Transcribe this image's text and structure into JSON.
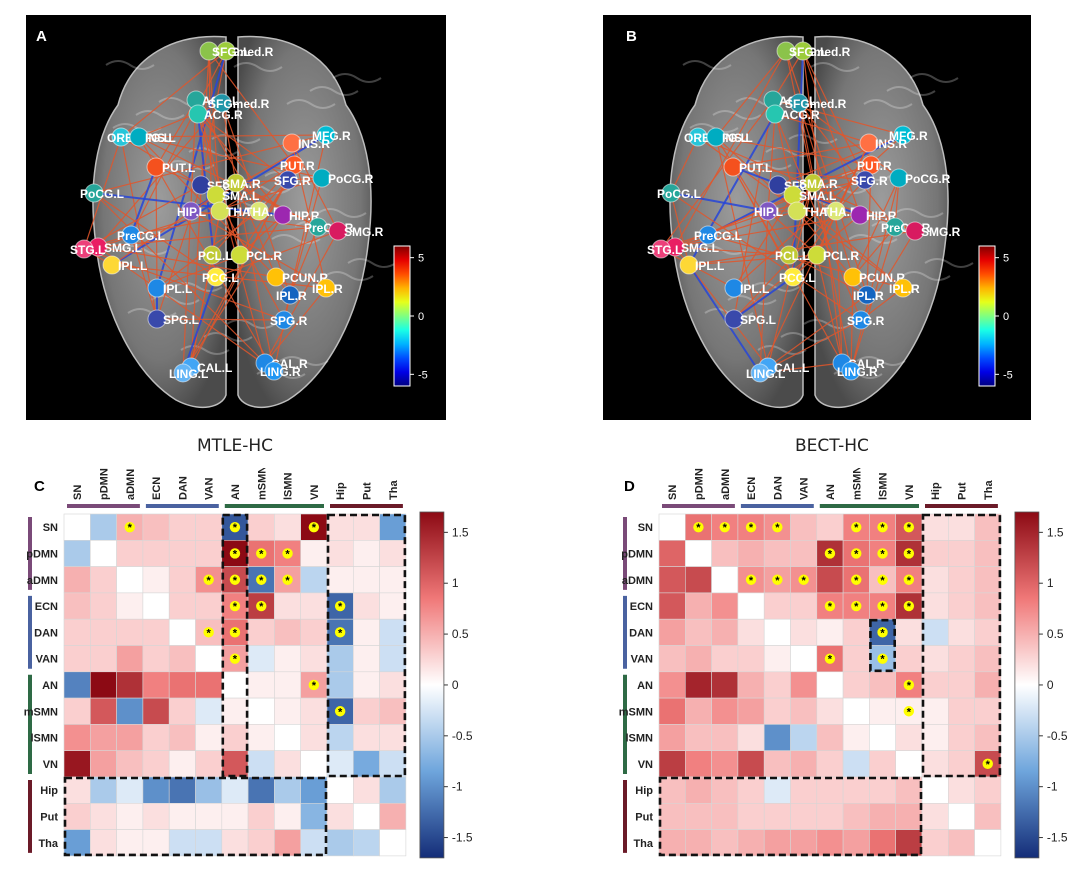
{
  "panels": {
    "A": {
      "label": "A"
    },
    "B": {
      "label": "B"
    },
    "C": {
      "label": "C",
      "title": "MTLE-HC"
    },
    "D": {
      "label": "D",
      "title": "BECT-HC"
    }
  },
  "brain_A_nodes": [
    {
      "name": "SFG.L",
      "color": "#8bc34a"
    },
    {
      "name": "SFGmed.R",
      "color": "#9ccc3a"
    },
    {
      "name": "ACG.L",
      "color": "#26a69a"
    },
    {
      "name": "SFGmed.R",
      "color": "#2196a8"
    },
    {
      "name": "ACG.R",
      "color": "#26c6b0"
    },
    {
      "name": "ORBMFG.L",
      "color": "#26c6da"
    },
    {
      "name": "INS.L",
      "color": "#00acc1"
    },
    {
      "name": "MFG.R",
      "color": "#00bcd4"
    },
    {
      "name": "INS.R",
      "color": "#ff7043"
    },
    {
      "name": "PUT.R",
      "color": "#ff5722"
    },
    {
      "name": "PUT.L",
      "color": "#f4511e"
    },
    {
      "name": "SFG.R",
      "color": "#3949ab"
    },
    {
      "name": "PoCG.R",
      "color": "#00acc1"
    },
    {
      "name": "PoCG.L",
      "color": "#26a69a"
    },
    {
      "name": "SFG.L",
      "color": "#303f9f"
    },
    {
      "name": "SMA.R",
      "color": "#c0ca33"
    },
    {
      "name": "SMA.L",
      "color": "#cddc39"
    },
    {
      "name": "HIP.L",
      "color": "#7e57c2"
    },
    {
      "name": "THA.L",
      "color": "#d4e157"
    },
    {
      "name": "THA.R",
      "color": "#dce775"
    },
    {
      "name": "HIP.R",
      "color": "#9c27b0"
    },
    {
      "name": "PreCG.R",
      "color": "#26a69a"
    },
    {
      "name": "SMG.R",
      "color": "#d81b60"
    },
    {
      "name": "PreCG.L",
      "color": "#1e88e5"
    },
    {
      "name": "SMG.L",
      "color": "#e91e63"
    },
    {
      "name": "STG.L",
      "color": "#ec407a"
    },
    {
      "name": "IPL.L",
      "color": "#fdd835"
    },
    {
      "name": "PCL.L",
      "color": "#c0ca33"
    },
    {
      "name": "PCL.R",
      "color": "#cddc39"
    },
    {
      "name": "PCG.L",
      "color": "#ffeb3b"
    },
    {
      "name": "PCUN.R",
      "color": "#ffc107"
    },
    {
      "name": "IPL.R",
      "color": "#ffc107"
    },
    {
      "name": "IPL.L",
      "color": "#1e88e5"
    },
    {
      "name": "IPL.R",
      "color": "#1565c0"
    },
    {
      "name": "SPG.L",
      "color": "#3949ab"
    },
    {
      "name": "SPG.R",
      "color": "#1e88e5"
    },
    {
      "name": "CAL.L",
      "color": "#42a5f5"
    },
    {
      "name": "LING.L",
      "color": "#64b5f6"
    },
    {
      "name": "CAL.R",
      "color": "#1e88e5"
    },
    {
      "name": "LING.R",
      "color": "#2196f3"
    }
  ],
  "brain_B_nodes": [
    {
      "name": "SFG.L",
      "color": "#8bc34a"
    },
    {
      "name": "SFGmed.R",
      "color": "#9ccc3a"
    },
    {
      "name": "ACG.L",
      "color": "#26a69a"
    },
    {
      "name": "SFGmed.R",
      "color": "#2196a8"
    },
    {
      "name": "ACG.R",
      "color": "#26c6b0"
    },
    {
      "name": "ORBMFG.L",
      "color": "#26c6da"
    },
    {
      "name": "INS.L",
      "color": "#00acc1"
    },
    {
      "name": "MFG.R",
      "color": "#00bcd4"
    },
    {
      "name": "INS.R",
      "color": "#ff7043"
    },
    {
      "name": "PUT.R",
      "color": "#ff5722"
    },
    {
      "name": "PUT.L",
      "color": "#f4511e"
    },
    {
      "name": "SFG.R",
      "color": "#3949ab"
    },
    {
      "name": "PoCG.R",
      "color": "#00acc1"
    },
    {
      "name": "PoCG.L",
      "color": "#26a69a"
    },
    {
      "name": "SFG.L",
      "color": "#303f9f"
    },
    {
      "name": "SMA.R",
      "color": "#c0ca33"
    },
    {
      "name": "SMA.L",
      "color": "#cddc39"
    },
    {
      "name": "HIP.L",
      "color": "#7e57c2"
    },
    {
      "name": "THA.L",
      "color": "#d4e157"
    },
    {
      "name": "THA.R",
      "color": "#dce775"
    },
    {
      "name": "HIP.R",
      "color": "#9c27b0"
    },
    {
      "name": "PreCG.R",
      "color": "#26a69a"
    },
    {
      "name": "SMG.R",
      "color": "#d81b60"
    },
    {
      "name": "PreCG.L",
      "color": "#1e88e5"
    },
    {
      "name": "SMG.L",
      "color": "#e91e63"
    },
    {
      "name": "STG.L",
      "color": "#ec407a"
    },
    {
      "name": "IPL.L",
      "color": "#fdd835"
    },
    {
      "name": "PCL.L",
      "color": "#c0ca33"
    },
    {
      "name": "PCL.R",
      "color": "#cddc39"
    },
    {
      "name": "PCG.L",
      "color": "#ffeb3b"
    },
    {
      "name": "PCUN.R",
      "color": "#ffc107"
    },
    {
      "name": "IPL.R",
      "color": "#ffc107"
    },
    {
      "name": "IPL.L",
      "color": "#1e88e5"
    },
    {
      "name": "IPL.R",
      "color": "#1565c0"
    },
    {
      "name": "SPG.L",
      "color": "#3949ab"
    },
    {
      "name": "SPG.R",
      "color": "#1e88e5"
    },
    {
      "name": "CAL.L",
      "color": "#42a5f5"
    },
    {
      "name": "LING.L",
      "color": "#64b5f6"
    },
    {
      "name": "CAL.R",
      "color": "#1e88e5"
    },
    {
      "name": "LING.R",
      "color": "#2196f3"
    }
  ],
  "brain_colorbar": {
    "ticks": [
      "5",
      "0",
      "-5"
    ],
    "min": -6,
    "max": 6
  },
  "matrix_colorbar": {
    "ticks": [
      "1.5",
      "1",
      "0.5",
      "0",
      "-0.5",
      "-1",
      "-1.5"
    ],
    "min": -1.7,
    "max": 1.7
  },
  "chart_data": [
    {
      "type": "heatmap",
      "title": "MTLE-HC",
      "row_labels": [
        "SN",
        "pDMN",
        "aDMN",
        "ECN",
        "DAN",
        "VAN",
        "AN",
        "mSMN",
        "lSMN",
        "VN",
        "Hip",
        "Put",
        "Tha"
      ],
      "col_labels": [
        "SN",
        "pDMN",
        "aDMN",
        "ECN",
        "DAN",
        "VAN",
        "AN",
        "mSMN",
        "lSMN",
        "VN",
        "Hip",
        "Put",
        "Tha"
      ],
      "group_colors": [
        "#7a4a78",
        "#7a4a78",
        "#7a4a78",
        "#4a62a0",
        "#4a62a0",
        "#4a62a0",
        "#2e6a45",
        "#2e6a45",
        "#2e6a45",
        "#2e6a45",
        "#6b1a28",
        "#6b1a28",
        "#6b1a28"
      ],
      "values": [
        [
          0,
          -0.5,
          0.5,
          0.4,
          0.3,
          0.3,
          -1.4,
          0.3,
          0.2,
          1.7,
          0.2,
          0.2,
          -0.9
        ],
        [
          -0.5,
          0,
          0.3,
          0.3,
          0.3,
          0.3,
          1.7,
          0.9,
          0.8,
          0.1,
          0.2,
          0.1,
          0.2
        ],
        [
          0.5,
          0.3,
          0,
          0.1,
          0.3,
          0.7,
          1.2,
          -1.2,
          0.6,
          -0.4,
          0.1,
          0.1,
          0.1
        ],
        [
          0.4,
          0.3,
          0.1,
          0,
          0.3,
          0.3,
          0.8,
          1.3,
          0.2,
          0.2,
          -1.3,
          0.2,
          0.1
        ],
        [
          0.3,
          0.3,
          0.3,
          0.3,
          0,
          0.4,
          0.9,
          0.3,
          0.4,
          0.3,
          -1.2,
          0.1,
          -0.3
        ],
        [
          0.3,
          0.3,
          0.6,
          0.3,
          0.4,
          0,
          0.6,
          -0.2,
          0.1,
          0.2,
          -0.5,
          0.1,
          -0.3
        ],
        [
          -1.1,
          1.7,
          1.4,
          0.8,
          0.9,
          0.9,
          0,
          0.1,
          0.1,
          0.6,
          -0.5,
          0.1,
          0.2
        ],
        [
          0.3,
          1.1,
          -1.0,
          1.2,
          0.3,
          -0.2,
          0.1,
          0,
          0.1,
          0.2,
          -1.3,
          0.3,
          0.4
        ],
        [
          0.7,
          0.6,
          0.6,
          0.3,
          0.4,
          0.1,
          0.3,
          0.1,
          0,
          0.2,
          -0.4,
          0.2,
          0.2
        ],
        [
          1.6,
          0.6,
          0.4,
          0.3,
          0.1,
          0.3,
          1.1,
          -0.3,
          0.2,
          0,
          -0.2,
          -0.8,
          -0.3
        ],
        [
          0.2,
          -0.5,
          -0.2,
          -1.0,
          -1.2,
          -0.6,
          -0.2,
          -1.2,
          -0.5,
          -0.9,
          0,
          0.2,
          -0.5
        ],
        [
          0.3,
          0.2,
          0.1,
          0.2,
          0.1,
          0.1,
          0.1,
          0.3,
          0.1,
          -0.7,
          0.2,
          0,
          0.5
        ],
        [
          -0.9,
          0.2,
          0.1,
          0.1,
          -0.3,
          -0.3,
          0.2,
          0.3,
          0.6,
          -0.3,
          -0.5,
          -0.4,
          0
        ]
      ],
      "significant": [
        [
          0,
          2
        ],
        [
          0,
          6
        ],
        [
          0,
          9
        ],
        [
          1,
          6
        ],
        [
          1,
          7
        ],
        [
          1,
          8
        ],
        [
          2,
          5
        ],
        [
          2,
          6
        ],
        [
          2,
          7
        ],
        [
          2,
          8
        ],
        [
          3,
          6
        ],
        [
          3,
          7
        ],
        [
          3,
          10
        ],
        [
          4,
          5
        ],
        [
          4,
          6
        ],
        [
          4,
          10
        ],
        [
          5,
          6
        ],
        [
          6,
          9
        ],
        [
          7,
          10
        ]
      ],
      "boxes": [
        {
          "r0": 0,
          "c0": 6,
          "r1": 9,
          "c1": 6
        },
        {
          "r0": 0,
          "c0": 10,
          "r1": 9,
          "c1": 12
        },
        {
          "r0": 10,
          "c0": 0,
          "r1": 12,
          "c1": 9
        }
      ]
    },
    {
      "type": "heatmap",
      "title": "BECT-HC",
      "row_labels": [
        "SN",
        "pDMN",
        "aDMN",
        "ECN",
        "DAN",
        "VAN",
        "AN",
        "mSMN",
        "lSMN",
        "VN",
        "Hip",
        "Put",
        "Tha"
      ],
      "col_labels": [
        "SN",
        "pDMN",
        "aDMN",
        "ECN",
        "DAN",
        "VAN",
        "AN",
        "mSMN",
        "lSMN",
        "VN",
        "Hip",
        "Put",
        "Tha"
      ],
      "group_colors": [
        "#7a4a78",
        "#7a4a78",
        "#7a4a78",
        "#4a62a0",
        "#4a62a0",
        "#4a62a0",
        "#2e6a45",
        "#2e6a45",
        "#2e6a45",
        "#2e6a45",
        "#6b1a28",
        "#6b1a28",
        "#6b1a28"
      ],
      "values": [
        [
          0,
          0.9,
          0.8,
          0.8,
          0.7,
          0.4,
          0.3,
          0.8,
          0.8,
          1.1,
          0.2,
          0.2,
          0.4
        ],
        [
          1.0,
          0,
          0.4,
          0.5,
          0.4,
          0.4,
          1.4,
          0.9,
          0.8,
          1.4,
          0.3,
          0.3,
          0.4
        ],
        [
          1.1,
          1.2,
          0,
          0.7,
          0.6,
          0.7,
          1.2,
          0.9,
          0.4,
          0.8,
          0.2,
          0.3,
          0.4
        ],
        [
          1.1,
          0.5,
          0.7,
          0,
          0.3,
          0.3,
          0.8,
          0.8,
          0.8,
          1.4,
          0.2,
          0.3,
          0.4
        ],
        [
          0.6,
          0.4,
          0.5,
          0.2,
          0,
          0.2,
          0.1,
          0.3,
          -1.3,
          0.2,
          -0.3,
          0.2,
          0.3
        ],
        [
          0.4,
          0.5,
          0.3,
          0.3,
          0.1,
          0,
          0.9,
          0.3,
          -0.6,
          0.3,
          0.2,
          0.3,
          0.4
        ],
        [
          0.7,
          1.5,
          1.4,
          0.5,
          0.3,
          0.7,
          0,
          0.3,
          0.4,
          0.8,
          0.3,
          0.3,
          0.5
        ],
        [
          0.9,
          0.5,
          0.7,
          0.6,
          0.3,
          0.4,
          0.2,
          0,
          0.1,
          0.1,
          0.1,
          0.3,
          0.3
        ],
        [
          0.6,
          0.4,
          0.4,
          0.2,
          -1.0,
          -0.4,
          0.4,
          0.1,
          0,
          0.2,
          0.1,
          0.3,
          0.4
        ],
        [
          1.3,
          0.8,
          0.7,
          1.2,
          0.4,
          0.5,
          0.3,
          -0.3,
          0.3,
          0,
          0.2,
          0.3,
          1.2
        ],
        [
          0.4,
          0.5,
          0.4,
          0.3,
          -0.2,
          0.3,
          0.3,
          0.3,
          0.3,
          0.4,
          0,
          0.2,
          0.3
        ],
        [
          0.4,
          0.4,
          0.4,
          0.3,
          0.3,
          0.3,
          0.3,
          0.4,
          0.5,
          0.5,
          0.2,
          0,
          0.4
        ],
        [
          0.5,
          0.5,
          0.4,
          0.5,
          0.6,
          0.6,
          0.7,
          0.6,
          0.9,
          1.3,
          0.3,
          0.4,
          0
        ]
      ],
      "significant": [
        [
          0,
          1
        ],
        [
          0,
          2
        ],
        [
          0,
          3
        ],
        [
          0,
          4
        ],
        [
          0,
          7
        ],
        [
          0,
          8
        ],
        [
          0,
          9
        ],
        [
          1,
          6
        ],
        [
          1,
          7
        ],
        [
          1,
          8
        ],
        [
          1,
          9
        ],
        [
          2,
          3
        ],
        [
          2,
          4
        ],
        [
          2,
          5
        ],
        [
          2,
          7
        ],
        [
          2,
          8
        ],
        [
          2,
          9
        ],
        [
          3,
          6
        ],
        [
          3,
          7
        ],
        [
          3,
          8
        ],
        [
          3,
          9
        ],
        [
          4,
          8
        ],
        [
          5,
          6
        ],
        [
          5,
          8
        ],
        [
          6,
          9
        ],
        [
          7,
          9
        ],
        [
          9,
          12
        ]
      ],
      "boxes": [
        {
          "r0": 4,
          "c0": 8,
          "r1": 5,
          "c1": 8
        },
        {
          "r0": 0,
          "c0": 10,
          "r1": 9,
          "c1": 12
        },
        {
          "r0": 10,
          "c0": 0,
          "r1": 12,
          "c1": 9
        }
      ]
    }
  ]
}
